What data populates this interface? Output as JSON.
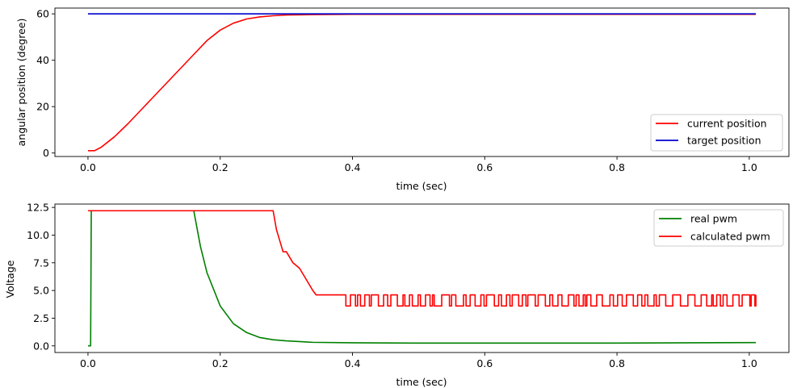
{
  "chart_data": [
    {
      "type": "line",
      "xlabel": "time (sec)",
      "ylabel": "angular position (degree)",
      "xlim": [
        -0.05,
        1.06
      ],
      "ylim": [
        -1.5,
        62.5
      ],
      "xticks": [
        0.0,
        0.2,
        0.4,
        0.6,
        0.8,
        1.0
      ],
      "xtick_labels": [
        "0.0",
        "0.2",
        "0.4",
        "0.6",
        "0.8",
        "1.0"
      ],
      "yticks": [
        0,
        20,
        40,
        60
      ],
      "ytick_labels": [
        "0",
        "20",
        "40",
        "60"
      ],
      "legend_position": "lower-right",
      "grid": false,
      "series": [
        {
          "name": "current position",
          "color": "#ff0000",
          "x": [
            0.0,
            0.01,
            0.02,
            0.04,
            0.06,
            0.08,
            0.1,
            0.12,
            0.14,
            0.16,
            0.18,
            0.2,
            0.22,
            0.24,
            0.26,
            0.28,
            0.3,
            0.34,
            0.4,
            0.5,
            0.6,
            0.8,
            1.01
          ],
          "y": [
            1.0,
            1.0,
            2.5,
            7.0,
            12.5,
            18.5,
            24.5,
            30.5,
            36.5,
            42.5,
            48.5,
            53.0,
            56.0,
            57.8,
            58.7,
            59.2,
            59.5,
            59.7,
            59.8,
            59.8,
            59.8,
            59.8,
            59.8
          ]
        },
        {
          "name": "target position",
          "color": "#0000cc",
          "x": [
            0.0,
            1.01
          ],
          "y": [
            60,
            60
          ]
        }
      ]
    },
    {
      "type": "line",
      "xlabel": "time (sec)",
      "ylabel": "Voltage",
      "xlim": [
        -0.05,
        1.06
      ],
      "ylim": [
        -0.6,
        12.8
      ],
      "xticks": [
        0.0,
        0.2,
        0.4,
        0.6,
        0.8,
        1.0
      ],
      "xtick_labels": [
        "0.0",
        "0.2",
        "0.4",
        "0.6",
        "0.8",
        "1.0"
      ],
      "yticks": [
        0.0,
        2.5,
        5.0,
        7.5,
        10.0,
        12.5
      ],
      "ytick_labels": [
        "0.0",
        "2.5",
        "5.0",
        "7.5",
        "10.0",
        "12.5"
      ],
      "legend_position": "upper-right",
      "grid": false,
      "series": [
        {
          "name": "real pwm",
          "color": "#008000",
          "x": [
            0.0,
            0.004,
            0.005,
            0.16,
            0.17,
            0.18,
            0.2,
            0.22,
            0.24,
            0.26,
            0.28,
            0.3,
            0.34,
            0.4,
            0.5,
            0.6,
            0.8,
            1.01
          ],
          "y": [
            0.0,
            0.0,
            12.2,
            12.2,
            9.0,
            6.6,
            3.6,
            2.0,
            1.2,
            0.75,
            0.55,
            0.45,
            0.32,
            0.28,
            0.25,
            0.25,
            0.25,
            0.3
          ]
        },
        {
          "name": "calculated pwm",
          "color": "#ff0000",
          "x": [
            0.0,
            0.28,
            0.285,
            0.29,
            0.295,
            0.3,
            0.31,
            0.32,
            0.325,
            0.33,
            0.335,
            0.34,
            0.345,
            0.39,
            0.4,
            1.01
          ],
          "y": [
            12.2,
            12.2,
            10.5,
            9.5,
            8.5,
            8.5,
            7.5,
            7.0,
            6.5,
            6.0,
            5.5,
            5.0,
            4.6,
            4.6,
            3.6,
            4.6
          ],
          "oscillation": {
            "x_start": 0.39,
            "x_end": 1.01,
            "low": 3.6,
            "high": 4.6
          }
        }
      ]
    }
  ]
}
